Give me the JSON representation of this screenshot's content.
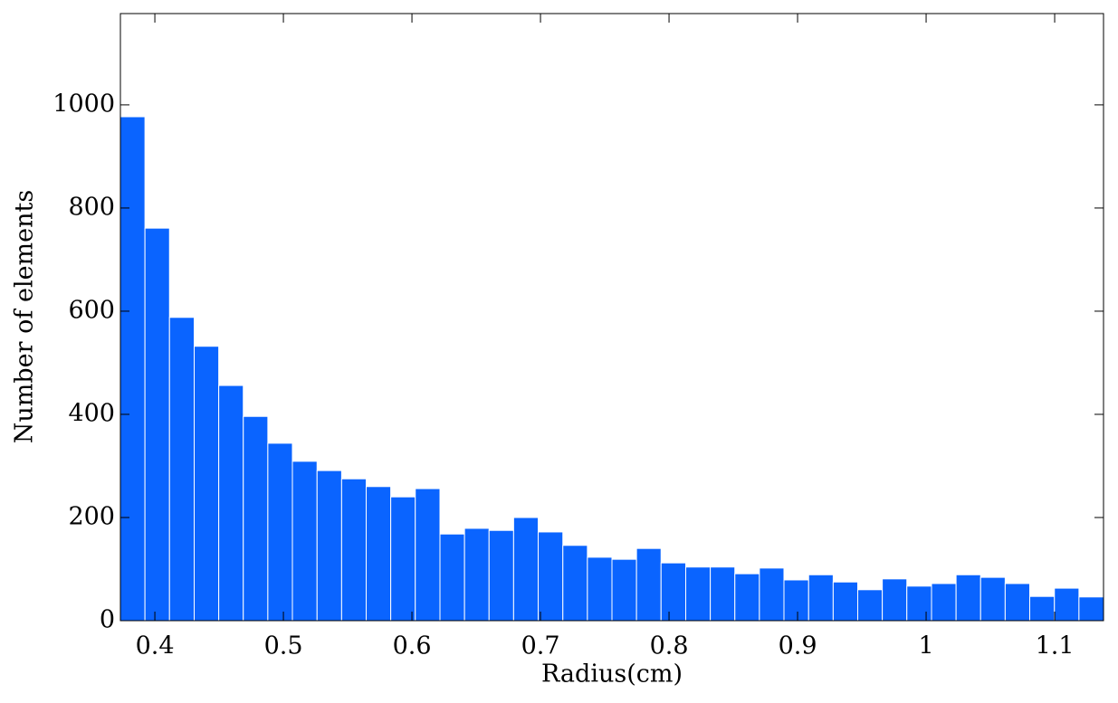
{
  "chart_data": {
    "type": "histogram",
    "xlabel": "Radius(cm)",
    "ylabel": "Number of elements",
    "color": "#0a64ff",
    "bins": [
      0.3732,
      0.3923,
      0.4114,
      0.4306,
      0.4497,
      0.4688,
      0.4879,
      0.507,
      0.5262,
      0.5453,
      0.5644,
      0.5835,
      0.6026,
      0.6218,
      0.6409,
      0.66,
      0.6791,
      0.6982,
      0.7174,
      0.7365,
      0.7556,
      0.7747,
      0.7938,
      0.813,
      0.8321,
      0.8512,
      0.8703,
      0.8894,
      0.9086,
      0.9277,
      0.9468,
      0.9659,
      0.985,
      1.0042,
      1.0233,
      1.0424,
      1.0615,
      1.0806,
      1.0998,
      1.1189,
      1.138
    ],
    "values": [
      977,
      761,
      588,
      532,
      456,
      396,
      344,
      309,
      291,
      275,
      260,
      240,
      256,
      168,
      179,
      175,
      200,
      172,
      146,
      123,
      119,
      140,
      112,
      104,
      104,
      91,
      102,
      79,
      89,
      75,
      60,
      81,
      67,
      72,
      89,
      84,
      72,
      47,
      63,
      46
    ],
    "xlim": [
      0.3732,
      1.138
    ],
    "ylim": [
      0,
      1177
    ],
    "xticks": [
      0.4,
      0.5,
      0.6,
      0.7,
      0.8,
      0.9,
      1,
      1.1
    ],
    "yticks": [
      0,
      200,
      400,
      600,
      800,
      1000
    ]
  }
}
